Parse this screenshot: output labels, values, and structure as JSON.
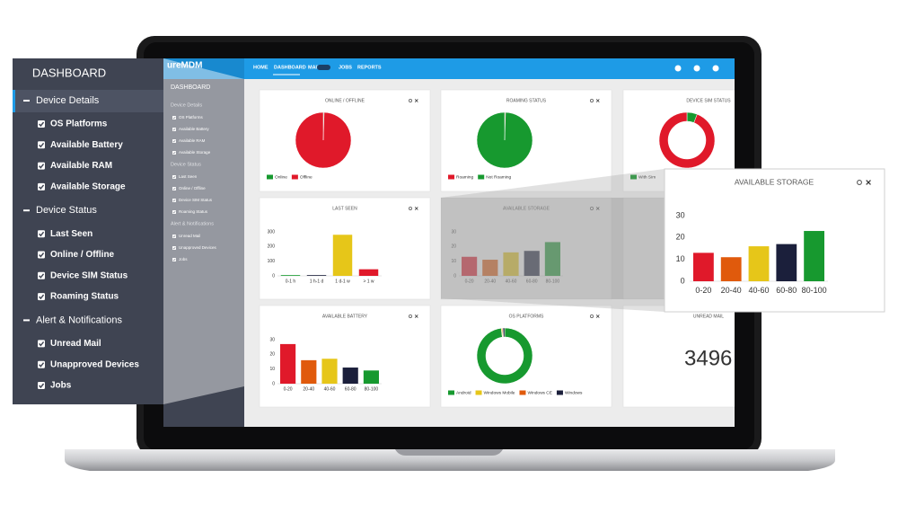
{
  "sidebar": {
    "title": "DASHBOARD",
    "sections": [
      {
        "label": "Device Details",
        "items": [
          "OS Platforms",
          "Available Battery",
          "Available RAM",
          "Available Storage"
        ]
      },
      {
        "label": "Device Status",
        "items": [
          "Last Seen",
          "Online / Offline",
          "Device SIM Status",
          "Roaming Status"
        ]
      },
      {
        "label": "Alert & Notifications",
        "items": [
          "Unread Mail",
          "Unapproved Devices",
          "Jobs"
        ]
      }
    ]
  },
  "app": {
    "brand": "ureMDM",
    "nav": [
      "HOME",
      "DASHBOARD",
      "MAIL",
      "JOBS",
      "REPORTS"
    ]
  },
  "widgets": [
    {
      "title": "ONLINE / OFFLINE",
      "chart": {
        "type": "pie",
        "categories": [
          "Online",
          "Offline"
        ],
        "values": [
          0.5,
          99.5
        ],
        "colors": [
          "#17992f",
          "#e0192a"
        ]
      }
    },
    {
      "title": "ROAMING STATUS",
      "chart": {
        "type": "pie",
        "categories": [
          "Roaming",
          "Not Roaming"
        ],
        "values": [
          0.5,
          99.5
        ],
        "colors": [
          "#e0192a",
          "#17992f"
        ]
      }
    },
    {
      "title": "DEVICE SIM STATUS",
      "chart": {
        "type": "donut",
        "categories": [
          "With Sim",
          null
        ],
        "values": [
          6,
          94
        ],
        "colors": [
          "#17992f",
          "#e0192a"
        ]
      }
    },
    {
      "title": "LAST SEEN",
      "chart": {
        "type": "bar",
        "categories": [
          "0-1 h",
          "1 h-1 d",
          "1 d-1 w",
          "> 1 w"
        ],
        "values": [
          5,
          5,
          280,
          45
        ],
        "colors": [
          "#17992f",
          "#1b1f3b",
          "#e6c619",
          "#e0192a"
        ],
        "ylim": [
          0,
          300
        ],
        "yticks": [
          0,
          100,
          200,
          300
        ],
        "grid": false
      }
    },
    {
      "title": "AVAILABLE STORAGE",
      "chart": {
        "type": "bar",
        "categories": [
          "0-20",
          "20-40",
          "40-60",
          "60-80",
          "80-100"
        ],
        "values": [
          13,
          11,
          16,
          17,
          23
        ],
        "colors": [
          "#e0192a",
          "#e05a0c",
          "#e6c619",
          "#1b1f3b",
          "#17992f"
        ],
        "ylim": [
          0,
          30
        ],
        "yticks": [
          0,
          10,
          20,
          30
        ],
        "grid": false
      }
    },
    {
      "title": "AVAILABLE BATTERY",
      "chart": {
        "type": "bar",
        "categories": [
          "0-20",
          "20-40",
          "40-60",
          "60-80",
          "80-100"
        ],
        "values": [
          27,
          16,
          17,
          11,
          9
        ],
        "colors": [
          "#e0192a",
          "#e05a0c",
          "#e6c619",
          "#1b1f3b",
          "#17992f"
        ],
        "ylim": [
          0,
          30
        ],
        "yticks": [
          0,
          10,
          20,
          30
        ],
        "grid": false
      }
    },
    {
      "title": "OS PLATFORMS",
      "chart": {
        "type": "donut",
        "categories": [
          "Android",
          "Windows Mobile",
          "Windows CE",
          "Windows"
        ],
        "values": [
          98,
          0.5,
          0.5,
          1
        ],
        "colors": [
          "#17992f",
          "#e6c619",
          "#e05a0c",
          "#1b1f3b"
        ]
      }
    },
    {
      "title": "UNREAD MAIL",
      "chart": {
        "type": "number",
        "values": [
          3496
        ]
      }
    }
  ]
}
